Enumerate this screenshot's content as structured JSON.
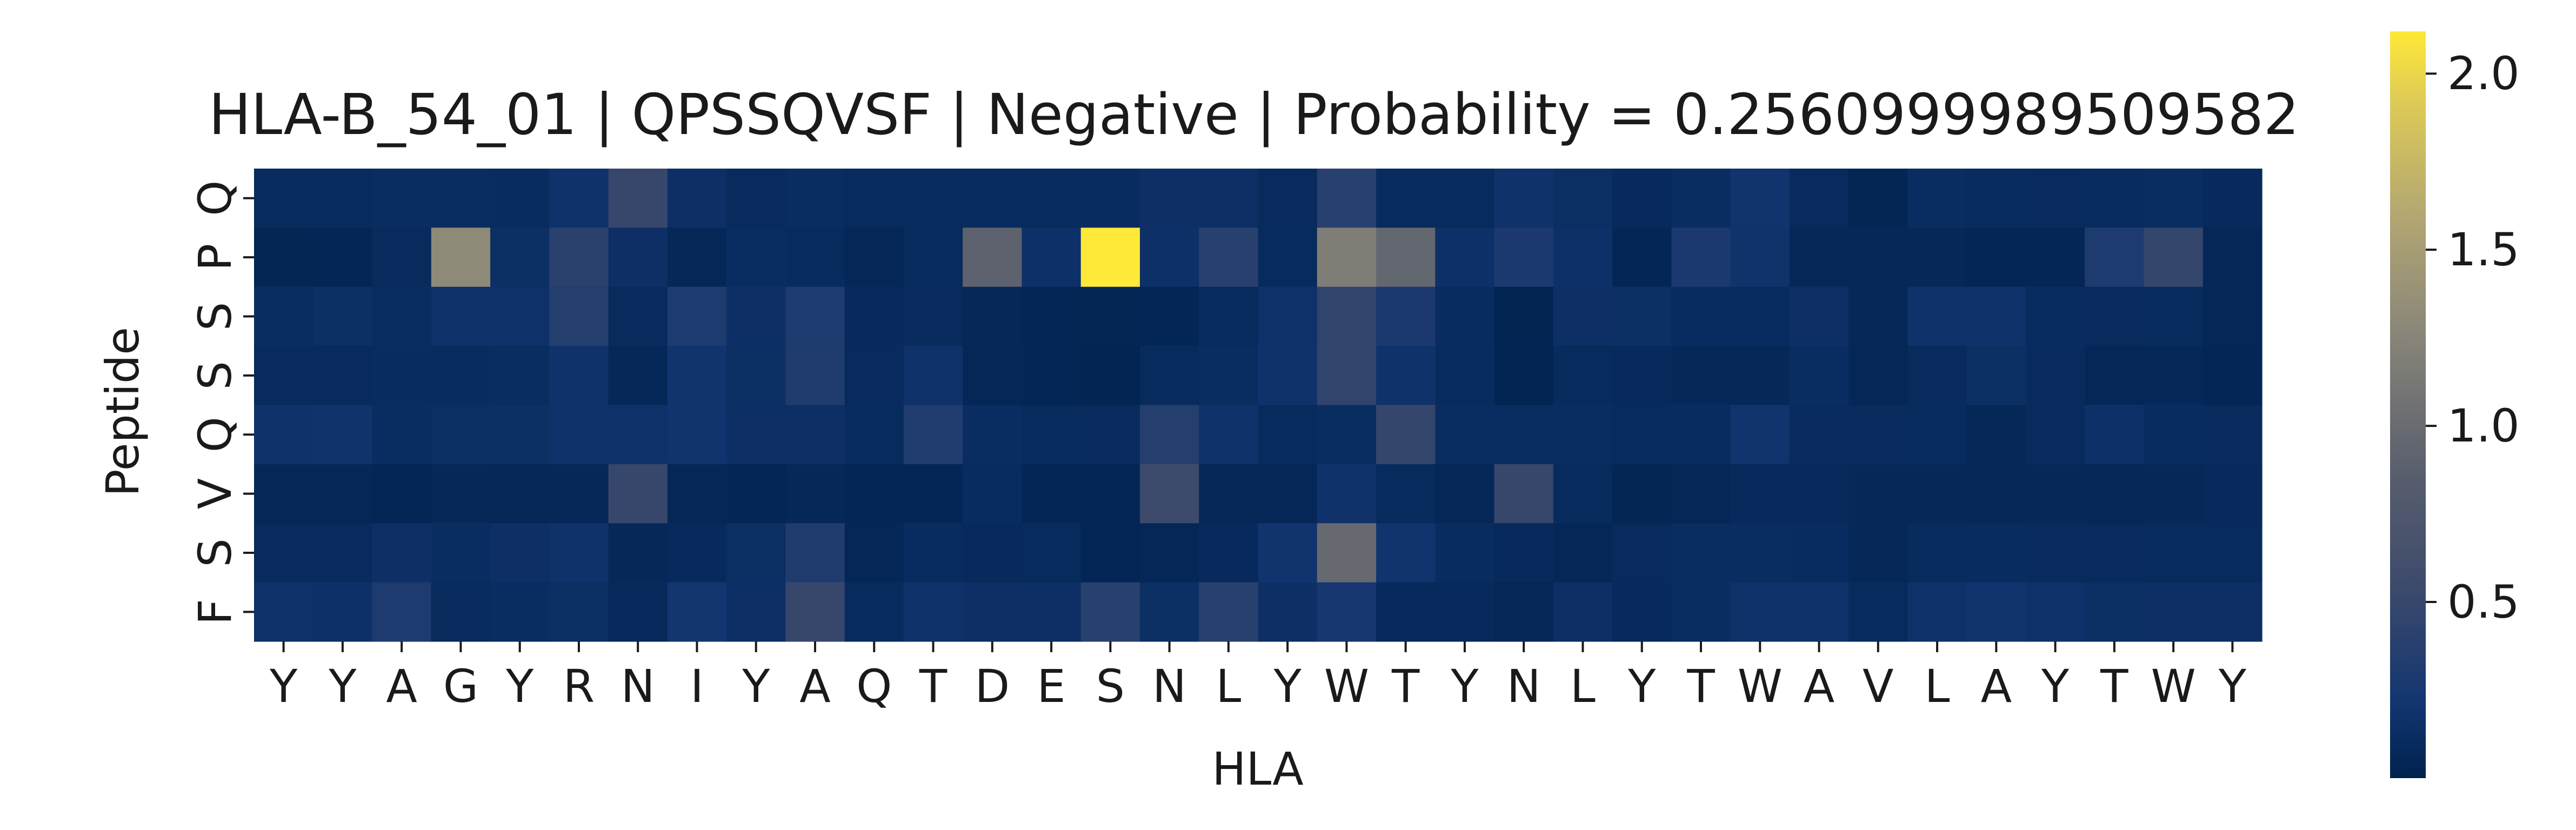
{
  "chart_data": {
    "type": "heatmap",
    "title": "HLA-B_54_01 | QPSSQVSF | Negative | Probability = 0.2560999989509582",
    "xlabel": "HLA",
    "ylabel": "Peptide",
    "x_tick_labels": [
      "Y",
      "Y",
      "A",
      "G",
      "Y",
      "R",
      "N",
      "I",
      "Y",
      "A",
      "Q",
      "T",
      "D",
      "E",
      "S",
      "N",
      "L",
      "Y",
      "W",
      "T",
      "Y",
      "N",
      "L",
      "Y",
      "T",
      "W",
      "A",
      "V",
      "L",
      "A",
      "Y",
      "T",
      "W",
      "Y"
    ],
    "y_tick_labels": [
      "Q",
      "P",
      "S",
      "S",
      "Q",
      "V",
      "S",
      "F"
    ],
    "colormap": "cividis",
    "colorbar": {
      "min": 0.0,
      "max": 2.12,
      "ticks": [
        0.5,
        1.0,
        1.5,
        2.0
      ],
      "tick_labels": [
        "0.5",
        "1.0",
        "1.5",
        "2.0"
      ]
    },
    "values": [
      [
        0.1,
        0.1,
        0.12,
        0.12,
        0.11,
        0.18,
        0.5,
        0.15,
        0.09,
        0.12,
        0.1,
        0.1,
        0.11,
        0.1,
        0.11,
        0.15,
        0.15,
        0.09,
        0.38,
        0.1,
        0.1,
        0.18,
        0.13,
        0.08,
        0.12,
        0.2,
        0.09,
        0.04,
        0.12,
        0.1,
        0.09,
        0.1,
        0.12,
        0.08
      ],
      [
        0.04,
        0.05,
        0.09,
        1.3,
        0.14,
        0.4,
        0.15,
        0.06,
        0.12,
        0.1,
        0.06,
        0.1,
        0.9,
        0.16,
        2.12,
        0.16,
        0.38,
        0.1,
        1.18,
        0.95,
        0.16,
        0.28,
        0.16,
        0.05,
        0.28,
        0.19,
        0.07,
        0.07,
        0.07,
        0.05,
        0.05,
        0.3,
        0.48,
        0.06
      ],
      [
        0.12,
        0.14,
        0.12,
        0.17,
        0.17,
        0.35,
        0.09,
        0.3,
        0.15,
        0.3,
        0.08,
        0.09,
        0.07,
        0.05,
        0.04,
        0.05,
        0.1,
        0.17,
        0.45,
        0.28,
        0.11,
        0.02,
        0.15,
        0.14,
        0.11,
        0.11,
        0.15,
        0.07,
        0.18,
        0.18,
        0.11,
        0.09,
        0.1,
        0.06
      ],
      [
        0.09,
        0.09,
        0.11,
        0.11,
        0.12,
        0.18,
        0.07,
        0.2,
        0.14,
        0.32,
        0.09,
        0.17,
        0.06,
        0.05,
        0.03,
        0.1,
        0.12,
        0.18,
        0.45,
        0.18,
        0.1,
        0.03,
        0.1,
        0.08,
        0.07,
        0.07,
        0.12,
        0.06,
        0.09,
        0.14,
        0.09,
        0.06,
        0.07,
        0.05
      ],
      [
        0.18,
        0.19,
        0.12,
        0.13,
        0.14,
        0.17,
        0.17,
        0.2,
        0.15,
        0.15,
        0.1,
        0.33,
        0.12,
        0.1,
        0.09,
        0.35,
        0.17,
        0.1,
        0.12,
        0.48,
        0.12,
        0.12,
        0.12,
        0.1,
        0.11,
        0.2,
        0.09,
        0.09,
        0.1,
        0.07,
        0.09,
        0.16,
        0.11,
        0.09
      ],
      [
        0.06,
        0.06,
        0.05,
        0.07,
        0.06,
        0.07,
        0.5,
        0.06,
        0.05,
        0.07,
        0.05,
        0.05,
        0.11,
        0.05,
        0.05,
        0.55,
        0.06,
        0.06,
        0.18,
        0.1,
        0.06,
        0.5,
        0.1,
        0.04,
        0.06,
        0.08,
        0.08,
        0.07,
        0.07,
        0.07,
        0.07,
        0.06,
        0.07,
        0.08
      ],
      [
        0.09,
        0.09,
        0.15,
        0.12,
        0.15,
        0.18,
        0.07,
        0.08,
        0.13,
        0.32,
        0.06,
        0.11,
        0.08,
        0.1,
        0.05,
        0.06,
        0.08,
        0.2,
        0.98,
        0.2,
        0.11,
        0.08,
        0.06,
        0.09,
        0.12,
        0.12,
        0.11,
        0.07,
        0.1,
        0.11,
        0.09,
        0.09,
        0.1,
        0.1
      ],
      [
        0.17,
        0.16,
        0.3,
        0.09,
        0.12,
        0.13,
        0.08,
        0.22,
        0.15,
        0.5,
        0.1,
        0.17,
        0.15,
        0.15,
        0.38,
        0.14,
        0.38,
        0.15,
        0.25,
        0.08,
        0.08,
        0.06,
        0.15,
        0.08,
        0.12,
        0.17,
        0.18,
        0.1,
        0.17,
        0.2,
        0.17,
        0.13,
        0.15,
        0.15
      ]
    ]
  }
}
